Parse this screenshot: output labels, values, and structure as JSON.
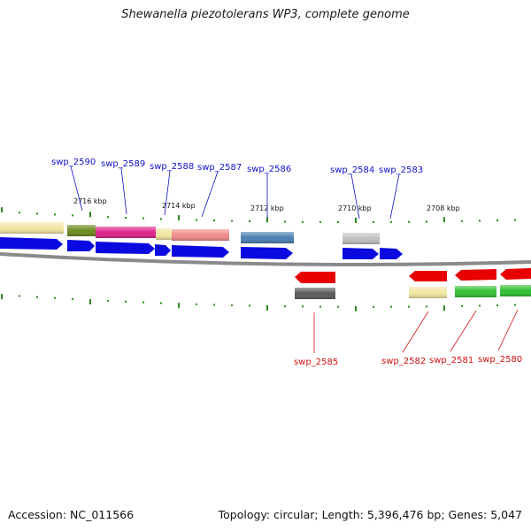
{
  "title": "Shewanella piezotolerans WP3, complete genome",
  "footer": {
    "accession": "Accession: NC_011566",
    "summary": "Topology: circular; Length: 5,396,476 bp; Genes: 5,047"
  },
  "colors": {
    "forward_label": "#1010c8",
    "reverse_label": "#d01010",
    "forward_cds": "#0a0ae0",
    "reverse_cds": "#e80000",
    "tick": "#2a8a1a",
    "backbone": "#8a8a8a"
  },
  "ruler": [
    {
      "label": "2716 kbp"
    },
    {
      "label": "2714 kbp"
    },
    {
      "label": "2712 kbp"
    },
    {
      "label": "2710 kbp"
    },
    {
      "label": "2708 kbp"
    }
  ],
  "forward_genes": [
    {
      "id": "swp_2590",
      "cog_color": "#6b8a1e"
    },
    {
      "id": "swp_2589",
      "cog_color": "#e0208a"
    },
    {
      "id": "swp_2588",
      "cog_color": "#f2e6a0"
    },
    {
      "id": "swp_2587",
      "cog_color": "#f08a8a"
    },
    {
      "id": "swp_2586",
      "cog_color": "#4a7eb4"
    },
    {
      "id": "swp_2584",
      "cog_color": "#c0c0c0"
    },
    {
      "id": "swp_2583",
      "cog_color": null
    }
  ],
  "reverse_genes": [
    {
      "id": "swp_2585",
      "cog_color": "#5a5a5a"
    },
    {
      "id": "swp_2582",
      "cog_color": "#f2e6a0"
    },
    {
      "id": "swp_2581",
      "cog_color": "#30c030"
    },
    {
      "id": "swp_2580",
      "cog_color": "#30c030"
    }
  ]
}
